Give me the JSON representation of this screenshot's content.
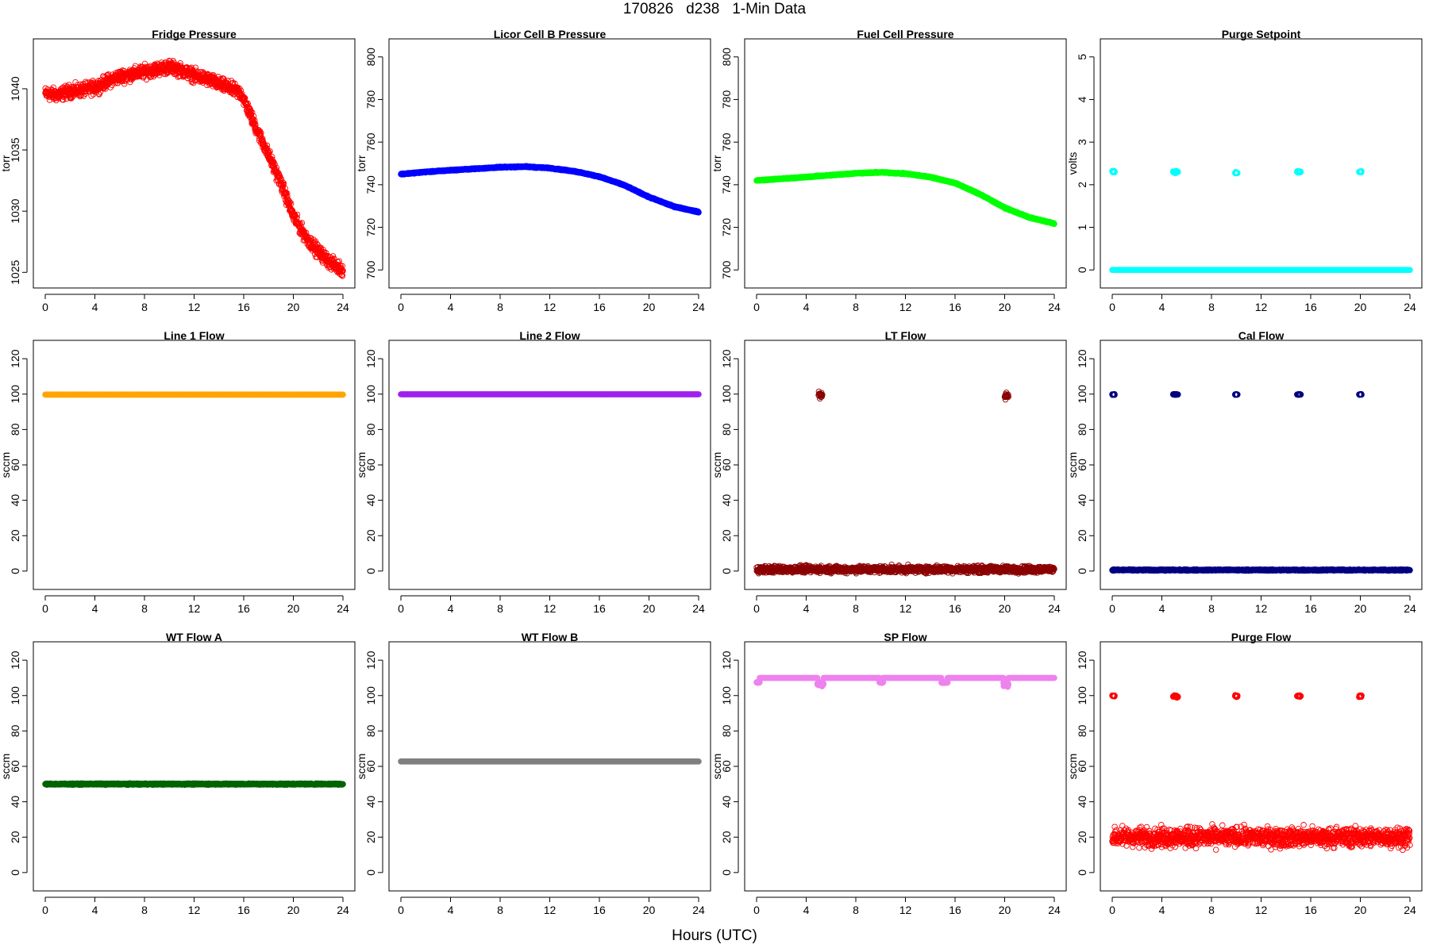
{
  "page": {
    "title": "170826   d238   1-Min Data",
    "xlabel": "Hours (UTC)"
  },
  "chart_data": [
    {
      "type": "scatter",
      "title": "Fridge Pressure",
      "xlabel": "",
      "ylabel": "torr",
      "xlim": [
        0,
        24
      ],
      "ylim": [
        1024.5,
        1043.3
      ],
      "xticks": [
        0,
        4,
        8,
        12,
        16,
        20,
        24
      ],
      "yticks": [
        1025,
        1030,
        1035,
        1040
      ],
      "grid": false,
      "color": "#ff0000",
      "marker": "open-circle",
      "series": [
        {
          "segments": [
            {
              "x": [
                0,
                1,
                2,
                3,
                4,
                5,
                6,
                7,
                8,
                9,
                10,
                11,
                12,
                13,
                14,
                15,
                15.8,
                17,
                18,
                19,
                20,
                21,
                22,
                23,
                24
              ],
              "y": [
                1039.6,
                1039.5,
                1039.8,
                1039.9,
                1040.1,
                1040.6,
                1041.0,
                1041.2,
                1041.4,
                1041.6,
                1041.8,
                1041.5,
                1041.1,
                1040.8,
                1040.4,
                1040.0,
                1039.6,
                1036.8,
                1034.6,
                1032.3,
                1029.6,
                1027.9,
                1026.7,
                1025.8,
                1025.2
              ],
              "noise": 0.45
            }
          ]
        }
      ]
    },
    {
      "type": "scatter",
      "title": "Licor Cell B Pressure",
      "xlabel": "",
      "ylabel": "torr",
      "xlim": [
        0,
        24
      ],
      "ylim": [
        696,
        804
      ],
      "xticks": [
        0,
        4,
        8,
        12,
        16,
        20,
        24
      ],
      "yticks": [
        700,
        720,
        740,
        760,
        780,
        800
      ],
      "grid": false,
      "color": "#0000ff",
      "marker": "filled-circle",
      "series": [
        {
          "segments": [
            {
              "x": [
                0,
                2,
                4,
                6,
                8,
                10,
                12,
                14,
                16,
                18,
                20,
                22,
                24
              ],
              "y": [
                745.0,
                746.0,
                746.8,
                747.5,
                748.2,
                748.5,
                747.8,
                746.3,
                743.8,
                739.8,
                734.2,
                729.8,
                727.2
              ],
              "noise": 0.2
            }
          ]
        }
      ]
    },
    {
      "type": "scatter",
      "title": "Fuel Cell Pressure",
      "xlabel": "",
      "ylabel": "torr",
      "xlim": [
        0,
        24
      ],
      "ylim": [
        696,
        804
      ],
      "xticks": [
        0,
        4,
        8,
        12,
        16,
        20,
        24
      ],
      "yticks": [
        700,
        720,
        740,
        760,
        780,
        800
      ],
      "grid": false,
      "color": "#00ff00",
      "marker": "filled-circle",
      "series": [
        {
          "segments": [
            {
              "x": [
                0,
                2,
                4,
                6,
                8,
                10,
                12,
                14,
                16,
                18,
                20,
                22,
                24
              ],
              "y": [
                742.0,
                742.8,
                743.6,
                744.5,
                745.4,
                745.8,
                745.2,
                743.6,
                740.8,
                735.6,
                729.2,
                724.6,
                721.8
              ],
              "noise": 0.2
            }
          ]
        }
      ]
    },
    {
      "type": "scatter",
      "title": "Purge Setpoint",
      "xlabel": "",
      "ylabel": "volts",
      "xlim": [
        0,
        24
      ],
      "ylim": [
        -0.2,
        5.2
      ],
      "xticks": [
        0,
        4,
        8,
        12,
        16,
        20,
        24
      ],
      "yticks": [
        0,
        1,
        2,
        3,
        4,
        5
      ],
      "grid": false,
      "color": "#00ffff",
      "marker": "open-circle",
      "series": [
        {
          "segments": [
            {
              "x": [
                0,
                24
              ],
              "y": [
                0,
                0
              ],
              "noise": 0
            },
            {
              "x": [
                0,
                0.2
              ],
              "y": [
                2.3,
                2.3
              ],
              "noise": 0.02
            },
            {
              "x": [
                4.9,
                5.3
              ],
              "y": [
                2.3,
                2.3
              ],
              "noise": 0.02
            },
            {
              "x": [
                9.9,
                10.1
              ],
              "y": [
                2.28,
                2.28
              ],
              "noise": 0.02
            },
            {
              "x": [
                14.9,
                15.2
              ],
              "y": [
                2.3,
                2.3
              ],
              "noise": 0.02
            },
            {
              "x": [
                19.9,
                20.1
              ],
              "y": [
                2.3,
                2.3
              ],
              "noise": 0.02
            }
          ]
        }
      ]
    },
    {
      "type": "scatter",
      "title": "Line 1 Flow",
      "xlabel": "",
      "ylabel": "sccm",
      "xlim": [
        0,
        24
      ],
      "ylim": [
        -5,
        125
      ],
      "xticks": [
        0,
        4,
        8,
        12,
        16,
        20,
        24
      ],
      "yticks": [
        0,
        20,
        40,
        60,
        80,
        100,
        120
      ],
      "grid": false,
      "color": "#ffa500",
      "marker": "filled-circle",
      "series": [
        {
          "segments": [
            {
              "x": [
                0,
                24
              ],
              "y": [
                99.7,
                99.7
              ],
              "noise": 0
            }
          ]
        }
      ]
    },
    {
      "type": "scatter",
      "title": "Line 2 Flow",
      "xlabel": "",
      "ylabel": "sccm",
      "xlim": [
        0,
        24
      ],
      "ylim": [
        -5,
        125
      ],
      "xticks": [
        0,
        4,
        8,
        12,
        16,
        20,
        24
      ],
      "yticks": [
        0,
        20,
        40,
        60,
        80,
        100,
        120
      ],
      "grid": false,
      "color": "#a020f0",
      "marker": "filled-circle",
      "series": [
        {
          "segments": [
            {
              "x": [
                0,
                24
              ],
              "y": [
                99.9,
                99.9
              ],
              "noise": 0
            }
          ]
        }
      ]
    },
    {
      "type": "scatter",
      "title": "LT Flow",
      "xlabel": "",
      "ylabel": "sccm",
      "xlim": [
        0,
        24
      ],
      "ylim": [
        -5,
        125
      ],
      "xticks": [
        0,
        4,
        8,
        12,
        16,
        20,
        24
      ],
      "yticks": [
        0,
        20,
        40,
        60,
        80,
        100,
        120
      ],
      "grid": false,
      "color": "#8b0000",
      "marker": "open-circle",
      "series": [
        {
          "segments": [
            {
              "x": [
                0,
                24
              ],
              "y": [
                1,
                1
              ],
              "noise": 1.6
            },
            {
              "x": [
                5.0,
                5.3
              ],
              "y": [
                99.5,
                99.5
              ],
              "noise": 1.5
            },
            {
              "x": [
                20.0,
                20.3
              ],
              "y": [
                99.3,
                99.3
              ],
              "noise": 1.5
            }
          ]
        }
      ]
    },
    {
      "type": "scatter",
      "title": "Cal Flow",
      "xlabel": "",
      "ylabel": "sccm",
      "xlim": [
        0,
        24
      ],
      "ylim": [
        -5,
        125
      ],
      "xticks": [
        0,
        4,
        8,
        12,
        16,
        20,
        24
      ],
      "yticks": [
        0,
        20,
        40,
        60,
        80,
        100,
        120
      ],
      "grid": false,
      "color": "#000080",
      "marker": "open-circle",
      "series": [
        {
          "segments": [
            {
              "x": [
                0,
                24
              ],
              "y": [
                0.6,
                0.6
              ],
              "noise": 0.3
            },
            {
              "x": [
                0,
                0.2
              ],
              "y": [
                99.8,
                99.8
              ],
              "noise": 0.2
            },
            {
              "x": [
                4.9,
                5.3
              ],
              "y": [
                99.8,
                99.8
              ],
              "noise": 0.2
            },
            {
              "x": [
                9.9,
                10.1
              ],
              "y": [
                99.8,
                99.8
              ],
              "noise": 0.2
            },
            {
              "x": [
                14.9,
                15.2
              ],
              "y": [
                99.8,
                99.8
              ],
              "noise": 0.2
            },
            {
              "x": [
                19.9,
                20.1
              ],
              "y": [
                99.8,
                99.8
              ],
              "noise": 0.2
            }
          ]
        }
      ]
    },
    {
      "type": "scatter",
      "title": "WT Flow A",
      "xlabel": "",
      "ylabel": "sccm",
      "xlim": [
        0,
        24
      ],
      "ylim": [
        -5,
        125
      ],
      "xticks": [
        0,
        4,
        8,
        12,
        16,
        20,
        24
      ],
      "yticks": [
        0,
        20,
        40,
        60,
        80,
        100,
        120
      ],
      "grid": false,
      "color": "#006400",
      "marker": "filled-circle",
      "series": [
        {
          "segments": [
            {
              "x": [
                0,
                24
              ],
              "y": [
                50,
                50
              ],
              "noise": 0.3
            }
          ]
        }
      ]
    },
    {
      "type": "scatter",
      "title": "WT Flow B",
      "xlabel": "",
      "ylabel": "sccm",
      "xlim": [
        0,
        24
      ],
      "ylim": [
        -5,
        125
      ],
      "xticks": [
        0,
        4,
        8,
        12,
        16,
        20,
        24
      ],
      "yticks": [
        0,
        20,
        40,
        60,
        80,
        100,
        120
      ],
      "grid": false,
      "color": "#808080",
      "marker": "filled-circle",
      "series": [
        {
          "segments": [
            {
              "x": [
                0,
                24
              ],
              "y": [
                62.8,
                62.8
              ],
              "noise": 0
            }
          ]
        }
      ]
    },
    {
      "type": "scatter",
      "title": "SP Flow",
      "xlabel": "",
      "ylabel": "sccm",
      "xlim": [
        0,
        24
      ],
      "ylim": [
        -5,
        125
      ],
      "xticks": [
        0,
        4,
        8,
        12,
        16,
        20,
        24
      ],
      "yticks": [
        0,
        20,
        40,
        60,
        80,
        100,
        120
      ],
      "grid": false,
      "color": "#ee82ee",
      "marker": "filled-circle",
      "series": [
        {
          "segments": [
            {
              "x": [
                0,
                0.25
              ],
              "y": [
                107.5,
                107.5
              ],
              "noise": 0.3
            },
            {
              "x": [
                0.25,
                4.9
              ],
              "y": [
                110,
                110
              ],
              "noise": 0
            },
            {
              "x": [
                4.9,
                5.4
              ],
              "y": [
                106.5,
                106.5
              ],
              "noise": 1.2
            },
            {
              "x": [
                5.4,
                9.9
              ],
              "y": [
                110,
                110
              ],
              "noise": 0
            },
            {
              "x": [
                9.9,
                10.2
              ],
              "y": [
                107.5,
                107.5
              ],
              "noise": 0.3
            },
            {
              "x": [
                10.2,
                14.9
              ],
              "y": [
                110,
                110
              ],
              "noise": 0
            },
            {
              "x": [
                14.9,
                15.4
              ],
              "y": [
                107.5,
                107.5
              ],
              "noise": 0.3
            },
            {
              "x": [
                15.4,
                19.9
              ],
              "y": [
                110,
                110
              ],
              "noise": 0
            },
            {
              "x": [
                19.9,
                20.3
              ],
              "y": [
                106.5,
                106.5
              ],
              "noise": 1.2
            },
            {
              "x": [
                20.3,
                24
              ],
              "y": [
                110,
                110
              ],
              "noise": 0
            }
          ]
        }
      ]
    },
    {
      "type": "scatter",
      "title": "Purge Flow",
      "xlabel": "",
      "ylabel": "sccm",
      "xlim": [
        0,
        24
      ],
      "ylim": [
        -5,
        125
      ],
      "xticks": [
        0,
        4,
        8,
        12,
        16,
        20,
        24
      ],
      "yticks": [
        0,
        20,
        40,
        60,
        80,
        100,
        120
      ],
      "grid": false,
      "color": "#ff0000",
      "marker": "open-circle",
      "series": [
        {
          "segments": [
            {
              "x": [
                0,
                24
              ],
              "y": [
                20,
                20
              ],
              "noise": 4.5
            },
            {
              "x": [
                0,
                0.2
              ],
              "y": [
                99.8,
                99.8
              ],
              "noise": 0.4
            },
            {
              "x": [
                4.9,
                5.3
              ],
              "y": [
                99.5,
                99.5
              ],
              "noise": 0.5
            },
            {
              "x": [
                9.9,
                10.1
              ],
              "y": [
                99.7,
                99.7
              ],
              "noise": 0.5
            },
            {
              "x": [
                14.9,
                15.2
              ],
              "y": [
                99.6,
                99.6
              ],
              "noise": 0.4
            },
            {
              "x": [
                19.9,
                20.1
              ],
              "y": [
                99.6,
                99.6
              ],
              "noise": 0.4
            }
          ]
        }
      ]
    }
  ]
}
